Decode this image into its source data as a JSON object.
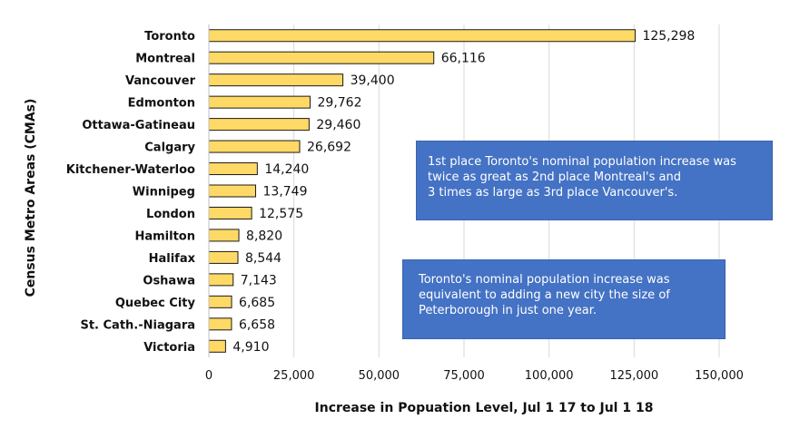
{
  "chart_data": {
    "type": "bar",
    "orientation": "horizontal",
    "title": "",
    "ylabel": "Census Metro Areas (CMAs)",
    "xlabel": "Increase in Popuation Level, Jul 1 17 to Jul 1 18",
    "categories": [
      "Toronto",
      "Montreal",
      "Vancouver",
      "Edmonton",
      "Ottawa-Gatineau",
      "Calgary",
      "Kitchener-Waterloo",
      "Winnipeg",
      "London",
      "Hamilton",
      "Halifax",
      "Oshawa",
      "Quebec City",
      "St. Cath.-Niagara",
      "Victoria"
    ],
    "values": [
      125298,
      66116,
      39400,
      29762,
      29460,
      26692,
      14240,
      13749,
      12575,
      8820,
      8544,
      7143,
      6685,
      6658,
      4910
    ],
    "value_labels": [
      "125,298",
      "66,116",
      "39,400",
      "29,762",
      "29,460",
      "26,692",
      "14,240",
      "13,749",
      "12,575",
      "8,820",
      "8,544",
      "7,143",
      "6,685",
      "6,658",
      "4,910"
    ],
    "xlim": [
      0,
      150000
    ],
    "xticks": [
      0,
      25000,
      50000,
      75000,
      100000,
      125000,
      150000
    ],
    "xtick_labels": [
      "0",
      "25,000",
      "50,000",
      "75,000",
      "100,000",
      "125,000",
      "150,000"
    ],
    "grid": "vertical",
    "legend": "none",
    "colors": {
      "bar_fill": "#ffd966",
      "bar_stroke": "#1a1a1a",
      "grid": "#d9d9d9",
      "note_box": "#4472c4"
    }
  },
  "notes": [
    {
      "lines": [
        "1st place Toronto's nominal population increase was",
        "twice as great as 2nd place Montreal's and",
        "3 times as large as 3rd place Vancouver's."
      ]
    },
    {
      "lines": [
        "Toronto's nominal population increase was",
        "equivalent to adding a new city the size of",
        "Peterborough in just one year."
      ]
    }
  ]
}
